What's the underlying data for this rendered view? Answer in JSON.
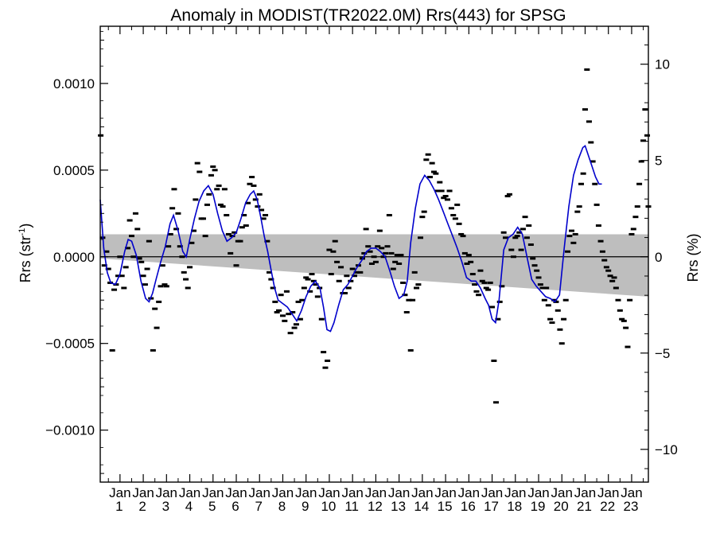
{
  "chart_data": {
    "type": "scatter",
    "title": "Anomaly in MODIST(TR2022.0M) Rrs(443) for SPSG",
    "ylabel_left_main": "Rrs (str",
    "ylabel_left_sup": "-1",
    "ylabel_left_close": ")",
    "ylabel_right": "Rrs (%)",
    "xlabel": "",
    "x_tick_top_label": "Jan",
    "x_tick_years": [
      "1",
      "2",
      "3",
      "4",
      "5",
      "6",
      "7",
      "8",
      "9",
      "10",
      "11",
      "12",
      "13",
      "14",
      "15",
      "16",
      "17",
      "18",
      "19",
      "20",
      "21",
      "22",
      "23"
    ],
    "xlim": [
      2000.15,
      2023.72
    ],
    "ylim_left": [
      -0.0013,
      0.00133
    ],
    "ylim_right": [
      -11.7,
      11.97
    ],
    "yticks_left": [
      -0.001,
      -0.0005,
      0.0,
      0.0005,
      0.001
    ],
    "yticks_left_labels": [
      "−0.0010",
      "−0.0005",
      "0.0000",
      "0.0005",
      "0.0010"
    ],
    "yticks_right": [
      -10,
      -5,
      0,
      5,
      10
    ],
    "yticks_right_labels": [
      "−10",
      "−5",
      "0",
      "5",
      "10"
    ],
    "grid": false,
    "colors": {
      "points": "#000000",
      "smooth_line": "#0000cc",
      "uncertainty_band": "#bebebe",
      "zero_line": "#000000"
    },
    "band": {
      "x": [
        2000.15,
        2023.72
      ],
      "upper": [
        0.00013,
        0.00013
      ],
      "lower": [
        -1e-05,
        -0.00023
      ]
    },
    "points": [
      [
        2000.17,
        0.0007
      ],
      [
        2000.25,
        0.00011
      ],
      [
        2000.33,
        -5e-05
      ],
      [
        2000.42,
        3e-05
      ],
      [
        2000.5,
        -7e-05
      ],
      [
        2000.58,
        -0.00015
      ],
      [
        2000.67,
        -0.00054
      ],
      [
        2000.75,
        -0.00019
      ],
      [
        2000.83,
        -0.00016
      ],
      [
        2000.92,
        -0.00011
      ],
      [
        2001.0,
        0.0
      ],
      [
        2001.08,
        -0.00011
      ],
      [
        2001.17,
        -0.00018
      ],
      [
        2001.25,
        -6e-05
      ],
      [
        2001.33,
        5e-05
      ],
      [
        2001.42,
        0.00021
      ],
      [
        2001.5,
        0.00012
      ],
      [
        2001.58,
        0.0
      ],
      [
        2001.67,
        0.00025
      ],
      [
        2001.75,
        0.00016
      ],
      [
        2001.83,
        -1e-05
      ],
      [
        2001.92,
        -3e-05
      ],
      [
        2002.0,
        -0.00011
      ],
      [
        2002.08,
        -0.00016
      ],
      [
        2002.17,
        -7e-05
      ],
      [
        2002.25,
        9e-05
      ],
      [
        2002.33,
        -0.00024
      ],
      [
        2002.42,
        -0.00054
      ],
      [
        2002.5,
        -0.0003
      ],
      [
        2002.58,
        -0.00041
      ],
      [
        2002.67,
        -0.00026
      ],
      [
        2002.75,
        -0.00017
      ],
      [
        2002.83,
        -5e-05
      ],
      [
        2002.92,
        -0.00016
      ],
      [
        2003.0,
        -0.00017
      ],
      [
        2003.08,
        6e-05
      ],
      [
        2003.17,
        0.00013
      ],
      [
        2003.25,
        0.00028
      ],
      [
        2003.33,
        0.00039
      ],
      [
        2003.42,
        0.00016
      ],
      [
        2003.5,
        0.00025
      ],
      [
        2003.58,
        6e-05
      ],
      [
        2003.67,
        0.0
      ],
      [
        2003.75,
        -9e-05
      ],
      [
        2003.83,
        -0.00013
      ],
      [
        2003.92,
        -0.00018
      ],
      [
        2004.0,
        -6e-05
      ],
      [
        2004.08,
        8e-05
      ],
      [
        2004.17,
        0.00015
      ],
      [
        2004.25,
        0.00033
      ],
      [
        2004.33,
        0.00054
      ],
      [
        2004.42,
        0.00049
      ],
      [
        2004.5,
        0.00022
      ],
      [
        2004.58,
        0.00022
      ],
      [
        2004.67,
        0.00012
      ],
      [
        2004.75,
        0.0003
      ],
      [
        2004.83,
        0.00036
      ],
      [
        2004.92,
        0.00047
      ],
      [
        2005.0,
        0.00052
      ],
      [
        2005.08,
        0.0005
      ],
      [
        2005.17,
        0.00039
      ],
      [
        2005.25,
        0.00041
      ],
      [
        2005.33,
        0.0003
      ],
      [
        2005.42,
        0.00029
      ],
      [
        2005.5,
        0.00039
      ],
      [
        2005.58,
        0.00024
      ],
      [
        2005.67,
        0.00013
      ],
      [
        2005.75,
        2e-05
      ],
      [
        2005.83,
        0.00012
      ],
      [
        2005.92,
        0.00014
      ],
      [
        2006.0,
        -5e-05
      ],
      [
        2006.08,
        9e-05
      ],
      [
        2006.17,
        9e-05
      ],
      [
        2006.25,
        0.00017
      ],
      [
        2006.33,
        0.00024
      ],
      [
        2006.42,
        0.00018
      ],
      [
        2006.5,
        0.00031
      ],
      [
        2006.58,
        0.00042
      ],
      [
        2006.67,
        0.00046
      ],
      [
        2006.75,
        0.00041
      ],
      [
        2006.83,
        0.00033
      ],
      [
        2006.92,
        0.00029
      ],
      [
        2007.0,
        0.00036
      ],
      [
        2007.08,
        0.00027
      ],
      [
        2007.17,
        0.00022
      ],
      [
        2007.25,
        0.00024
      ],
      [
        2007.33,
        9e-05
      ],
      [
        2007.42,
        -9e-05
      ],
      [
        2007.5,
        -0.00013
      ],
      [
        2007.58,
        -0.00018
      ],
      [
        2007.67,
        -0.00026
      ],
      [
        2007.75,
        -0.00032
      ],
      [
        2007.83,
        -0.00031
      ],
      [
        2007.92,
        -0.00022
      ],
      [
        2008.0,
        -0.00034
      ],
      [
        2008.08,
        -0.00037
      ],
      [
        2008.17,
        -0.0002
      ],
      [
        2008.25,
        -0.00033
      ],
      [
        2008.33,
        -0.00044
      ],
      [
        2008.42,
        -0.00032
      ],
      [
        2008.5,
        -0.00041
      ],
      [
        2008.58,
        -0.00039
      ],
      [
        2008.67,
        -0.00026
      ],
      [
        2008.75,
        -0.00036
      ],
      [
        2008.83,
        -0.00025
      ],
      [
        2008.92,
        -0.00018
      ],
      [
        2009.0,
        -0.00012
      ],
      [
        2009.08,
        -0.00013
      ],
      [
        2009.17,
        -0.0002
      ],
      [
        2009.25,
        -0.0001
      ],
      [
        2009.33,
        -0.00014
      ],
      [
        2009.42,
        -0.00016
      ],
      [
        2009.5,
        -0.00023
      ],
      [
        2009.58,
        -0.00018
      ],
      [
        2009.67,
        -0.00036
      ],
      [
        2009.75,
        -0.00055
      ],
      [
        2009.83,
        -0.00064
      ],
      [
        2009.92,
        -0.0006
      ],
      [
        2010.0,
        4e-05
      ],
      [
        2010.08,
        -0.0001
      ],
      [
        2010.17,
        3e-05
      ],
      [
        2010.25,
        9e-05
      ],
      [
        2010.33,
        -3e-05
      ],
      [
        2010.42,
        -0.00014
      ],
      [
        2010.5,
        -6e-05
      ],
      [
        2010.58,
        -0.00021
      ],
      [
        2010.67,
        -0.00021
      ],
      [
        2010.75,
        -0.00011
      ],
      [
        2010.83,
        -0.00018
      ],
      [
        2010.92,
        -0.00014
      ],
      [
        2011.0,
        -7e-05
      ],
      [
        2011.08,
        -0.00011
      ],
      [
        2011.17,
        -9e-05
      ],
      [
        2011.25,
        -5e-05
      ],
      [
        2011.33,
        -9e-05
      ],
      [
        2011.42,
        -1e-05
      ],
      [
        2011.5,
        2e-05
      ],
      [
        2011.58,
        0.00016
      ],
      [
        2011.67,
        6e-05
      ],
      [
        2011.75,
        3e-05
      ],
      [
        2011.83,
        -4e-05
      ],
      [
        2011.92,
        0.0
      ],
      [
        2012.0,
        -3e-05
      ],
      [
        2012.08,
        6e-05
      ],
      [
        2012.17,
        0.00015
      ],
      [
        2012.25,
        5e-05
      ],
      [
        2012.33,
        0.0
      ],
      [
        2012.42,
        2e-05
      ],
      [
        2012.5,
        6e-05
      ],
      [
        2012.58,
        0.00024
      ],
      [
        2012.67,
        2e-05
      ],
      [
        2012.75,
        -7e-05
      ],
      [
        2012.83,
        -3e-05
      ],
      [
        2012.92,
        1e-05
      ],
      [
        2013.0,
        -4e-05
      ],
      [
        2013.08,
        1e-05
      ],
      [
        2013.17,
        -0.00015
      ],
      [
        2013.25,
        -0.00022
      ],
      [
        2013.33,
        -0.00032
      ],
      [
        2013.42,
        -0.00025
      ],
      [
        2013.5,
        -0.00054
      ],
      [
        2013.58,
        -0.00025
      ],
      [
        2013.67,
        -9e-05
      ],
      [
        2013.75,
        -0.00018
      ],
      [
        2013.83,
        -0.00016
      ],
      [
        2013.92,
        0.00011
      ],
      [
        2014.0,
        0.00023
      ],
      [
        2014.08,
        0.00026
      ],
      [
        2014.17,
        0.00056
      ],
      [
        2014.25,
        0.00059
      ],
      [
        2014.33,
        0.00046
      ],
      [
        2014.42,
        0.00054
      ],
      [
        2014.5,
        0.00049
      ],
      [
        2014.58,
        0.00048
      ],
      [
        2014.67,
        0.00038
      ],
      [
        2014.75,
        0.00043
      ],
      [
        2014.83,
        0.00038
      ],
      [
        2014.92,
        0.00034
      ],
      [
        2015.0,
        0.00035
      ],
      [
        2015.08,
        0.00033
      ],
      [
        2015.17,
        0.00038
      ],
      [
        2015.25,
        0.00028
      ],
      [
        2015.33,
        0.00024
      ],
      [
        2015.42,
        0.00022
      ],
      [
        2015.5,
        0.0003
      ],
      [
        2015.58,
        0.00019
      ],
      [
        2015.67,
        0.00013
      ],
      [
        2015.75,
        0.00012
      ],
      [
        2015.83,
        2e-05
      ],
      [
        2015.92,
        -4e-05
      ],
      [
        2016.0,
        1e-05
      ],
      [
        2016.08,
        -3e-05
      ],
      [
        2016.17,
        -0.0001
      ],
      [
        2016.25,
        -0.00016
      ],
      [
        2016.33,
        -0.0002
      ],
      [
        2016.42,
        -0.00022
      ],
      [
        2016.5,
        -8e-05
      ],
      [
        2016.58,
        -0.00014
      ],
      [
        2016.67,
        -0.00015
      ],
      [
        2016.75,
        -0.00018
      ],
      [
        2016.83,
        -0.00019
      ],
      [
        2016.92,
        -0.00015
      ],
      [
        2017.0,
        -0.00029
      ],
      [
        2017.08,
        -0.0006
      ],
      [
        2017.17,
        -0.00084
      ],
      [
        2017.25,
        -0.00036
      ],
      [
        2017.33,
        -0.00026
      ],
      [
        2017.42,
        -0.00017
      ],
      [
        2017.5,
        0.00014
      ],
      [
        2017.58,
        0.00011
      ],
      [
        2017.67,
        0.00035
      ],
      [
        2017.75,
        0.00036
      ],
      [
        2017.83,
        4e-05
      ],
      [
        2017.92,
        0.0
      ],
      [
        2018.0,
        0.00011
      ],
      [
        2018.08,
        0.00012
      ],
      [
        2018.17,
        0.00014
      ],
      [
        2018.25,
        4e-05
      ],
      [
        2018.33,
        0.00016
      ],
      [
        2018.42,
        0.00023
      ],
      [
        2018.5,
        0.00011
      ],
      [
        2018.58,
        0.00018
      ],
      [
        2018.67,
        7e-05
      ],
      [
        2018.75,
        -1e-05
      ],
      [
        2018.83,
        -5e-05
      ],
      [
        2018.92,
        -8e-05
      ],
      [
        2019.0,
        -0.00012
      ],
      [
        2019.08,
        -0.00016
      ],
      [
        2019.17,
        -0.00018
      ],
      [
        2019.25,
        -0.00025
      ],
      [
        2019.33,
        -0.00018
      ],
      [
        2019.42,
        -0.00028
      ],
      [
        2019.5,
        -0.00036
      ],
      [
        2019.58,
        -0.00038
      ],
      [
        2019.67,
        -0.00025
      ],
      [
        2019.75,
        -0.00026
      ],
      [
        2019.83,
        -0.00031
      ],
      [
        2019.92,
        -0.00042
      ],
      [
        2020.0,
        -0.0005
      ],
      [
        2020.08,
        -0.00036
      ],
      [
        2020.17,
        -0.00025
      ],
      [
        2020.25,
        3e-05
      ],
      [
        2020.33,
        0.00012
      ],
      [
        2020.42,
        0.00015
      ],
      [
        2020.5,
        8e-05
      ],
      [
        2020.58,
        0.00013
      ],
      [
        2020.67,
        0.00026
      ],
      [
        2020.75,
        0.00029
      ],
      [
        2020.83,
        0.00042
      ],
      [
        2020.92,
        0.00048
      ],
      [
        2021.0,
        0.00085
      ],
      [
        2021.08,
        0.00108
      ],
      [
        2021.17,
        0.00078
      ],
      [
        2021.25,
        0.00066
      ],
      [
        2021.33,
        0.00055
      ],
      [
        2021.42,
        0.00042
      ],
      [
        2021.5,
        0.0003
      ],
      [
        2021.58,
        0.00018
      ],
      [
        2021.67,
        9e-05
      ],
      [
        2021.75,
        3e-05
      ],
      [
        2021.83,
        -2e-05
      ],
      [
        2021.92,
        -6e-05
      ],
      [
        2022.0,
        -8e-05
      ],
      [
        2022.08,
        -0.00011
      ],
      [
        2022.17,
        -0.00014
      ],
      [
        2022.25,
        -0.00012
      ],
      [
        2022.33,
        -0.00018
      ],
      [
        2022.42,
        -0.00025
      ],
      [
        2022.5,
        -0.00031
      ],
      [
        2022.58,
        -0.00036
      ],
      [
        2022.67,
        -0.00037
      ],
      [
        2022.75,
        -0.00041
      ],
      [
        2022.83,
        -0.00052
      ],
      [
        2022.92,
        -0.00025
      ],
      [
        2023.0,
        0.00013
      ],
      [
        2023.08,
        0.00016
      ],
      [
        2023.17,
        0.00023
      ],
      [
        2023.25,
        0.00029
      ],
      [
        2023.33,
        0.00042
      ],
      [
        2023.42,
        0.00055
      ],
      [
        2023.5,
        0.00067
      ],
      [
        2023.58,
        0.00085
      ],
      [
        2023.67,
        0.0007
      ],
      [
        2023.72,
        0.00029
      ]
    ],
    "smooth_line": {
      "x": [
        2000.15,
        2000.3,
        2000.45,
        2000.6,
        2000.8,
        2001.0,
        2001.2,
        2001.35,
        2001.5,
        2001.7,
        2001.9,
        2002.1,
        2002.25,
        2002.4,
        2002.55,
        2002.75,
        2002.95,
        2003.15,
        2003.3,
        2003.5,
        2003.7,
        2003.85,
        2004.0,
        2004.2,
        2004.4,
        2004.6,
        2004.8,
        2005.0,
        2005.2,
        2005.4,
        2005.6,
        2005.8,
        2006.0,
        2006.2,
        2006.4,
        2006.6,
        2006.75,
        2006.9,
        2007.05,
        2007.2,
        2007.35,
        2007.5,
        2007.65,
        2007.8,
        2008.0,
        2008.2,
        2008.4,
        2008.6,
        2008.8,
        2009.0,
        2009.2,
        2009.4,
        2009.6,
        2009.75,
        2009.9,
        2010.05,
        2010.2,
        2010.4,
        2010.6,
        2010.8,
        2011.0,
        2011.2,
        2011.4,
        2011.6,
        2011.8,
        2012.0,
        2012.2,
        2012.4,
        2012.6,
        2012.8,
        2013.0,
        2013.2,
        2013.35,
        2013.5,
        2013.7,
        2013.9,
        2014.1,
        2014.3,
        2014.5,
        2014.7,
        2014.9,
        2015.1,
        2015.3,
        2015.5,
        2015.7,
        2015.9,
        2016.1,
        2016.3,
        2016.5,
        2016.7,
        2016.85,
        2017.0,
        2017.15,
        2017.3,
        2017.5,
        2017.7,
        2017.9,
        2018.1,
        2018.3,
        2018.5,
        2018.7,
        2018.9,
        2019.1,
        2019.3,
        2019.5,
        2019.7,
        2019.9,
        2020.1,
        2020.3,
        2020.5,
        2020.7,
        2020.9,
        2021.0,
        2021.15,
        2021.3,
        2021.45,
        2021.6,
        2021.72
      ],
      "y": [
        0.00033,
        5e-05,
        -9e-05,
        -0.00015,
        -0.00016,
        -0.0001,
        3e-05,
        0.0001,
        9e-05,
        1e-05,
        -0.00014,
        -0.00024,
        -0.00026,
        -0.00021,
        -0.00013,
        -3e-05,
        6e-05,
        0.00019,
        0.00024,
        0.00015,
        3e-05,
        0.0,
        0.0001,
        0.00022,
        0.00032,
        0.00038,
        0.00041,
        0.00036,
        0.00025,
        0.00015,
        9e-05,
        0.00011,
        0.00014,
        0.00022,
        0.00031,
        0.00036,
        0.00038,
        0.00033,
        0.00023,
        0.00012,
        3e-05,
        -8e-05,
        -0.00018,
        -0.00025,
        -0.00027,
        -0.00029,
        -0.00033,
        -0.00037,
        -0.00031,
        -0.00023,
        -0.00017,
        -0.00014,
        -0.00018,
        -0.00029,
        -0.00042,
        -0.00043,
        -0.00038,
        -0.00028,
        -0.00019,
        -0.00016,
        -0.00011,
        -6e-05,
        -2e-05,
        3e-05,
        5e-05,
        5e-05,
        3e-05,
        0.0,
        -8e-05,
        -0.00017,
        -0.00024,
        -0.00022,
        -0.00014,
        8e-05,
        0.00028,
        0.00042,
        0.00047,
        0.00044,
        0.00039,
        0.00033,
        0.00026,
        0.00019,
        0.00012,
        5e-05,
        -3e-05,
        -0.00012,
        -0.00014,
        -0.00014,
        -0.00018,
        -0.00024,
        -0.00028,
        -0.00036,
        -0.00038,
        -0.00025,
        4e-05,
        0.00011,
        0.00013,
        0.00017,
        0.00013,
        0.0,
        -0.00013,
        -0.00017,
        -0.0002,
        -0.00023,
        -0.00024,
        -0.00026,
        -0.00022,
        5e-05,
        0.00029,
        0.00047,
        0.00056,
        0.00063,
        0.00064,
        0.00058,
        0.00052,
        0.00046,
        0.00042,
        0.00042
      ]
    }
  }
}
